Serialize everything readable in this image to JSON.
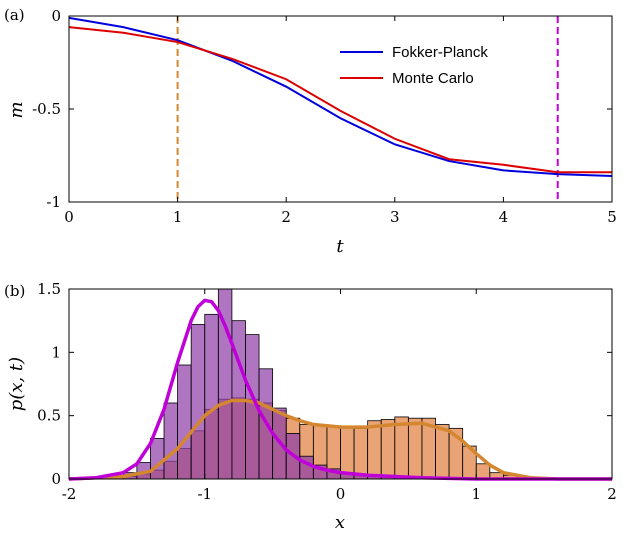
{
  "chart_data": [
    {
      "panel": "(a)",
      "type": "line",
      "xlabel": "t",
      "ylabel": "m",
      "xlim": [
        0,
        5
      ],
      "ylim": [
        -1,
        0
      ],
      "xticks": [
        "0",
        "1",
        "2",
        "3",
        "4",
        "5"
      ],
      "yticks": [
        "0",
        "-0.5",
        "-1"
      ],
      "legend_position": "top-right",
      "series": [
        {
          "name": "Fokker-Planck",
          "color": "#0000dd",
          "x": [
            0,
            0.5,
            1.0,
            1.5,
            2.0,
            2.5,
            3.0,
            3.5,
            4.0,
            4.5,
            5.0
          ],
          "y": [
            -0.01,
            -0.06,
            -0.13,
            -0.24,
            -0.38,
            -0.55,
            -0.69,
            -0.78,
            -0.83,
            -0.85,
            -0.86
          ]
        },
        {
          "name": "Monte Carlo",
          "color": "#dd0000",
          "x": [
            0,
            0.5,
            1.0,
            1.5,
            2.0,
            2.5,
            3.0,
            3.5,
            4.0,
            4.5,
            5.0
          ],
          "y": [
            -0.06,
            -0.09,
            -0.14,
            -0.23,
            -0.34,
            -0.51,
            -0.66,
            -0.77,
            -0.8,
            -0.84,
            -0.84
          ]
        }
      ],
      "vertical_lines": [
        {
          "x": 1.0,
          "color": "#d4872f"
        },
        {
          "x": 4.5,
          "color": "#c000d8"
        }
      ]
    },
    {
      "panel": "(b)",
      "type": "bar",
      "xlabel": "x",
      "ylabel": "p(x, t)",
      "xlim": [
        -2,
        2
      ],
      "ylim": [
        0,
        1.5
      ],
      "xticks": [
        "-2",
        "-1",
        "0",
        "1",
        "2"
      ],
      "yticks": [
        "0",
        "0.5",
        "1",
        "1.5"
      ],
      "bin_width": 0.1,
      "histograms": [
        {
          "t": 1,
          "color": "#e08040",
          "bin_left": [
            -1.6,
            -1.5,
            -1.4,
            -1.3,
            -1.2,
            -1.1,
            -1.0,
            -0.9,
            -0.8,
            -0.7,
            -0.6,
            -0.5,
            -0.4,
            -0.3,
            -0.2,
            -0.1,
            0.0,
            0.1,
            0.2,
            0.3,
            0.4,
            0.5,
            0.6,
            0.7,
            0.8,
            0.9,
            1.0,
            1.1,
            1.2,
            1.3
          ],
          "values": [
            0.02,
            0.04,
            0.07,
            0.14,
            0.24,
            0.38,
            0.55,
            0.63,
            0.64,
            0.63,
            0.6,
            0.54,
            0.48,
            0.43,
            0.42,
            0.42,
            0.41,
            0.4,
            0.46,
            0.47,
            0.49,
            0.48,
            0.48,
            0.43,
            0.4,
            0.26,
            0.12,
            0.05,
            0.03,
            0.01
          ]
        },
        {
          "t": 4.5,
          "color": "#9040a8",
          "bin_left": [
            -1.8,
            -1.7,
            -1.6,
            -1.5,
            -1.4,
            -1.3,
            -1.2,
            -1.1,
            -1.0,
            -0.9,
            -0.8,
            -0.7,
            -0.6,
            -0.5,
            -0.4,
            -0.3,
            -0.2,
            -0.1,
            0.0,
            0.1,
            0.2,
            0.3,
            0.4,
            0.5,
            0.6,
            0.7,
            0.8,
            0.9,
            1.0
          ],
          "values": [
            0.01,
            0.02,
            0.05,
            0.13,
            0.32,
            0.6,
            0.9,
            1.22,
            1.3,
            1.5,
            1.25,
            1.14,
            0.87,
            0.56,
            0.36,
            0.18,
            0.11,
            0.08,
            0.05,
            0.04,
            0.03,
            0.02,
            0.02,
            0.01,
            0.01,
            0.01,
            0.0,
            0.0,
            0.0
          ]
        }
      ],
      "curves": [
        {
          "t": 1,
          "color": "#d4872f",
          "x": [
            -2.0,
            -1.6,
            -1.4,
            -1.2,
            -1.0,
            -0.9,
            -0.8,
            -0.7,
            -0.6,
            -0.5,
            -0.4,
            -0.3,
            -0.2,
            -0.1,
            0.0,
            0.2,
            0.4,
            0.6,
            0.8,
            0.9,
            1.0,
            1.1,
            1.2,
            1.4,
            1.6,
            2.0
          ],
          "y": [
            0.0,
            0.02,
            0.06,
            0.24,
            0.5,
            0.58,
            0.62,
            0.62,
            0.6,
            0.55,
            0.5,
            0.46,
            0.43,
            0.42,
            0.41,
            0.41,
            0.43,
            0.44,
            0.38,
            0.3,
            0.2,
            0.11,
            0.05,
            0.01,
            0.0,
            0.0
          ]
        },
        {
          "t": 4.5,
          "color": "#c000d8",
          "x": [
            -2.0,
            -1.8,
            -1.6,
            -1.5,
            -1.4,
            -1.3,
            -1.2,
            -1.1,
            -1.05,
            -1.0,
            -0.95,
            -0.9,
            -0.85,
            -0.8,
            -0.7,
            -0.6,
            -0.5,
            -0.4,
            -0.3,
            -0.2,
            -0.1,
            0.0,
            0.2,
            0.4,
            0.6,
            1.0,
            1.5,
            2.0
          ],
          "y": [
            0.0,
            0.01,
            0.05,
            0.12,
            0.28,
            0.55,
            0.92,
            1.25,
            1.36,
            1.41,
            1.4,
            1.33,
            1.21,
            1.07,
            0.78,
            0.54,
            0.36,
            0.23,
            0.15,
            0.1,
            0.07,
            0.05,
            0.03,
            0.02,
            0.01,
            0.0,
            0.0,
            0.0
          ]
        }
      ]
    }
  ]
}
